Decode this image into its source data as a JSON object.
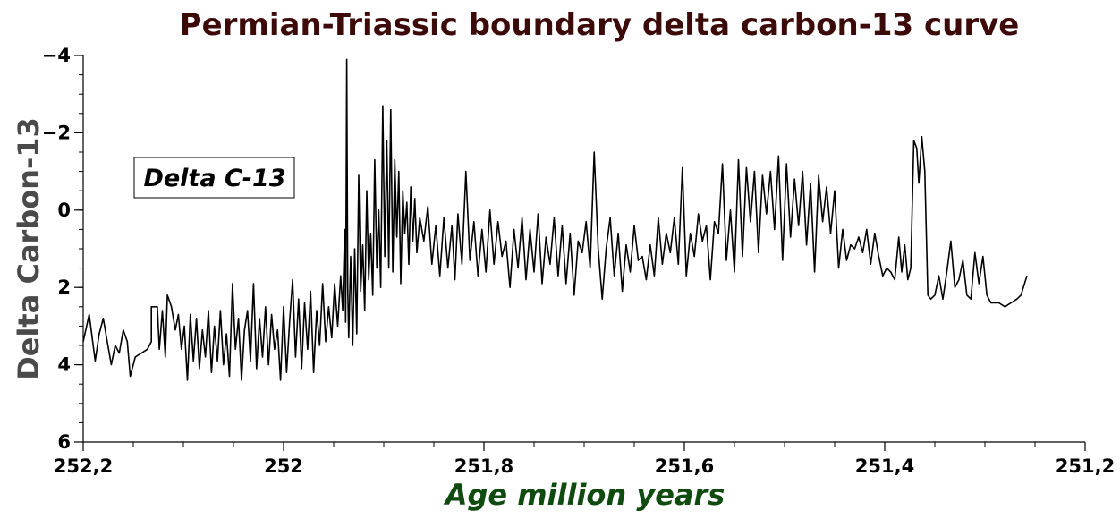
{
  "chart_data": {
    "type": "line",
    "title": "Permian-Triassic boundary delta carbon-13 curve",
    "xlabel": "Age million years",
    "ylabel": "Delta Carbon-13",
    "xlim": [
      252.2,
      251.2
    ],
    "ylim": [
      6,
      -4
    ],
    "y_inverted": true,
    "x_reversed": true,
    "grid": false,
    "legend_position": "upper-left",
    "x_ticks": [
      {
        "value": 252.2,
        "label": "252,2"
      },
      {
        "value": 252.0,
        "label": "252"
      },
      {
        "value": 251.8,
        "label": "251,8"
      },
      {
        "value": 251.6,
        "label": "251,6"
      },
      {
        "value": 251.4,
        "label": "251,4"
      },
      {
        "value": 251.2,
        "label": "251,2"
      }
    ],
    "y_ticks": [
      {
        "value": -4,
        "label": "−4"
      },
      {
        "value": -2,
        "label": "−2"
      },
      {
        "value": 0,
        "label": "0"
      },
      {
        "value": 2,
        "label": "2"
      },
      {
        "value": 4,
        "label": "4"
      },
      {
        "value": 6,
        "label": "6"
      }
    ],
    "series": [
      {
        "name": "Delta C-13",
        "color": "#000000",
        "points": [
          [
            252.2,
            3.4
          ],
          [
            252.194,
            2.7
          ],
          [
            252.188,
            3.9
          ],
          [
            252.184,
            3.2
          ],
          [
            252.18,
            2.8
          ],
          [
            252.176,
            3.4
          ],
          [
            252.172,
            4.0
          ],
          [
            252.168,
            3.5
          ],
          [
            252.164,
            3.7
          ],
          [
            252.16,
            3.1
          ],
          [
            252.156,
            3.4
          ],
          [
            252.153,
            4.3
          ],
          [
            252.148,
            3.8
          ],
          [
            252.136,
            3.6
          ],
          [
            252.132,
            3.4
          ],
          [
            252.132,
            2.5
          ],
          [
            252.126,
            2.5
          ],
          [
            252.124,
            3.6
          ],
          [
            252.121,
            2.6
          ],
          [
            252.118,
            3.8
          ],
          [
            252.116,
            2.2
          ],
          [
            252.112,
            2.5
          ],
          [
            252.108,
            3.1
          ],
          [
            252.105,
            2.7
          ],
          [
            252.102,
            3.6
          ],
          [
            252.099,
            3.0
          ],
          [
            252.096,
            4.4
          ],
          [
            252.093,
            2.7
          ],
          [
            252.09,
            3.9
          ],
          [
            252.087,
            2.8
          ],
          [
            252.084,
            4.1
          ],
          [
            252.081,
            3.1
          ],
          [
            252.078,
            3.8
          ],
          [
            252.075,
            2.6
          ],
          [
            252.072,
            4.2
          ],
          [
            252.069,
            3.0
          ],
          [
            252.066,
            3.9
          ],
          [
            252.063,
            2.6
          ],
          [
            252.06,
            4.0
          ],
          [
            252.057,
            3.2
          ],
          [
            252.054,
            4.3
          ],
          [
            252.051,
            1.9
          ],
          [
            252.048,
            3.6
          ],
          [
            252.045,
            2.8
          ],
          [
            252.042,
            4.4
          ],
          [
            252.039,
            3.1
          ],
          [
            252.036,
            2.6
          ],
          [
            252.033,
            3.9
          ],
          [
            252.03,
            1.9
          ],
          [
            252.027,
            4.1
          ],
          [
            252.024,
            2.8
          ],
          [
            252.021,
            3.8
          ],
          [
            252.018,
            2.5
          ],
          [
            252.015,
            4.0
          ],
          [
            252.012,
            2.7
          ],
          [
            252.009,
            3.6
          ],
          [
            252.006,
            3.1
          ],
          [
            252.003,
            4.4
          ],
          [
            252.0,
            2.5
          ],
          [
            251.997,
            4.2
          ],
          [
            251.994,
            2.9
          ],
          [
            251.991,
            1.8
          ],
          [
            251.988,
            3.8
          ],
          [
            251.985,
            2.3
          ],
          [
            251.982,
            4.1
          ],
          [
            251.979,
            2.4
          ],
          [
            251.976,
            3.6
          ],
          [
            251.973,
            2.1
          ],
          [
            251.97,
            4.2
          ],
          [
            251.967,
            2.6
          ],
          [
            251.964,
            3.5
          ],
          [
            251.961,
            1.9
          ],
          [
            251.958,
            3.4
          ],
          [
            251.955,
            2.5
          ],
          [
            251.952,
            3.3
          ],
          [
            251.949,
            1.9
          ],
          [
            251.946,
            3.0
          ],
          [
            251.943,
            1.7
          ],
          [
            251.941,
            2.6
          ],
          [
            251.939,
            0.5
          ],
          [
            251.938,
            2.9
          ],
          [
            251.937,
            -3.9
          ],
          [
            251.936,
            2.0
          ],
          [
            251.935,
            3.3
          ],
          [
            251.933,
            1.2
          ],
          [
            251.931,
            3.5
          ],
          [
            251.929,
            1.0
          ],
          [
            251.927,
            3.2
          ],
          [
            251.925,
            -0.9
          ],
          [
            251.923,
            2.1
          ],
          [
            251.921,
            0.9
          ],
          [
            251.919,
            2.6
          ],
          [
            251.917,
            -0.5
          ],
          [
            251.915,
            1.8
          ],
          [
            251.913,
            0.6
          ],
          [
            251.911,
            2.2
          ],
          [
            251.909,
            -1.3
          ],
          [
            251.907,
            1.5
          ],
          [
            251.905,
            0.0
          ],
          [
            251.903,
            2.0
          ],
          [
            251.901,
            -2.7
          ],
          [
            251.899,
            1.2
          ],
          [
            251.897,
            -1.8
          ],
          [
            251.895,
            1.5
          ],
          [
            251.893,
            -2.6
          ],
          [
            251.891,
            1.6
          ],
          [
            251.889,
            -1.3
          ],
          [
            251.887,
            0.7
          ],
          [
            251.885,
            -1.0
          ],
          [
            251.883,
            1.9
          ],
          [
            251.881,
            -0.5
          ],
          [
            251.879,
            0.6
          ],
          [
            251.877,
            -0.2
          ],
          [
            251.875,
            1.4
          ],
          [
            251.873,
            -0.6
          ],
          [
            251.871,
            0.8
          ],
          [
            251.869,
            -0.3
          ],
          [
            251.867,
            1.1
          ],
          [
            251.864,
            0.2
          ],
          [
            251.86,
            0.8
          ],
          [
            251.856,
            -0.1
          ],
          [
            251.852,
            1.4
          ],
          [
            251.848,
            0.4
          ],
          [
            251.844,
            1.7
          ],
          [
            251.84,
            0.2
          ],
          [
            251.836,
            1.5
          ],
          [
            251.832,
            0.4
          ],
          [
            251.829,
            1.8
          ],
          [
            251.826,
            0.1
          ],
          [
            251.822,
            1.4
          ],
          [
            251.818,
            -1.0
          ],
          [
            251.814,
            1.3
          ],
          [
            251.81,
            0.3
          ],
          [
            251.806,
            1.7
          ],
          [
            251.802,
            0.5
          ],
          [
            251.798,
            1.6
          ],
          [
            251.794,
            0.0
          ],
          [
            251.79,
            1.4
          ],
          [
            251.786,
            0.3
          ],
          [
            251.782,
            1.2
          ],
          [
            251.778,
            0.8
          ],
          [
            251.774,
            2.0
          ],
          [
            251.77,
            0.5
          ],
          [
            251.766,
            1.5
          ],
          [
            251.762,
            0.2
          ],
          [
            251.758,
            1.8
          ],
          [
            251.754,
            0.5
          ],
          [
            251.75,
            1.6
          ],
          [
            251.746,
            0.1
          ],
          [
            251.742,
            1.9
          ],
          [
            251.738,
            0.7
          ],
          [
            251.734,
            1.4
          ],
          [
            251.73,
            0.2
          ],
          [
            251.726,
            1.7
          ],
          [
            251.722,
            0.4
          ],
          [
            251.718,
            1.9
          ],
          [
            251.714,
            0.6
          ],
          [
            251.71,
            2.2
          ],
          [
            251.706,
            0.8
          ],
          [
            251.702,
            1.1
          ],
          [
            251.698,
            0.3
          ],
          [
            251.694,
            1.5
          ],
          [
            251.69,
            -1.5
          ],
          [
            251.686,
            1.0
          ],
          [
            251.682,
            2.3
          ],
          [
            251.678,
            1.0
          ],
          [
            251.674,
            0.2
          ],
          [
            251.67,
            1.7
          ],
          [
            251.666,
            0.6
          ],
          [
            251.662,
            2.1
          ],
          [
            251.658,
            0.9
          ],
          [
            251.654,
            1.6
          ],
          [
            251.65,
            0.4
          ],
          [
            251.646,
            1.3
          ],
          [
            251.642,
            1.2
          ],
          [
            251.638,
            1.8
          ],
          [
            251.634,
            0.9
          ],
          [
            251.63,
            1.7
          ],
          [
            251.626,
            0.2
          ],
          [
            251.622,
            1.4
          ],
          [
            251.618,
            0.6
          ],
          [
            251.614,
            1.1
          ],
          [
            251.61,
            0.2
          ],
          [
            251.606,
            1.4
          ],
          [
            251.602,
            -1.1
          ],
          [
            251.598,
            1.7
          ],
          [
            251.594,
            0.6
          ],
          [
            251.59,
            1.2
          ],
          [
            251.586,
            0.1
          ],
          [
            251.582,
            0.8
          ],
          [
            251.578,
            0.4
          ],
          [
            251.574,
            1.8
          ],
          [
            251.57,
            0.3
          ],
          [
            251.566,
            0.6
          ],
          [
            251.562,
            -1.2
          ],
          [
            251.558,
            1.3
          ],
          [
            251.554,
            0.0
          ],
          [
            251.55,
            1.6
          ],
          [
            251.546,
            -1.3
          ],
          [
            251.542,
            1.2
          ],
          [
            251.538,
            -1.1
          ],
          [
            251.534,
            0.3
          ],
          [
            251.53,
            -1.0
          ],
          [
            251.526,
            1.1
          ],
          [
            251.522,
            -0.9
          ],
          [
            251.518,
            0.1
          ],
          [
            251.514,
            -1.0
          ],
          [
            251.51,
            0.5
          ],
          [
            251.506,
            -1.4
          ],
          [
            251.502,
            1.3
          ],
          [
            251.498,
            -1.2
          ],
          [
            251.494,
            0.7
          ],
          [
            251.49,
            -0.8
          ],
          [
            251.486,
            0.4
          ],
          [
            251.482,
            -1.0
          ],
          [
            251.478,
            0.9
          ],
          [
            251.474,
            -0.7
          ],
          [
            251.47,
            1.6
          ],
          [
            251.466,
            -0.9
          ],
          [
            251.462,
            0.3
          ],
          [
            251.458,
            -0.6
          ],
          [
            251.454,
            0.6
          ],
          [
            251.45,
            -0.5
          ],
          [
            251.446,
            1.5
          ],
          [
            251.442,
            0.5
          ],
          [
            251.438,
            1.3
          ],
          [
            251.434,
            0.9
          ],
          [
            251.43,
            1.0
          ],
          [
            251.426,
            0.7
          ],
          [
            251.422,
            1.1
          ],
          [
            251.418,
            0.5
          ],
          [
            251.414,
            1.4
          ],
          [
            251.41,
            0.6
          ],
          [
            251.406,
            1.2
          ],
          [
            251.402,
            1.7
          ],
          [
            251.398,
            1.5
          ],
          [
            251.394,
            1.6
          ],
          [
            251.39,
            1.8
          ],
          [
            251.386,
            0.7
          ],
          [
            251.383,
            1.6
          ],
          [
            251.38,
            0.9
          ],
          [
            251.377,
            1.8
          ],
          [
            251.374,
            1.5
          ],
          [
            251.371,
            -1.8
          ],
          [
            251.368,
            -1.6
          ],
          [
            251.366,
            -0.7
          ],
          [
            251.363,
            -1.9
          ],
          [
            251.36,
            -1.0
          ],
          [
            251.357,
            2.2
          ],
          [
            251.354,
            2.3
          ],
          [
            251.35,
            2.2
          ],
          [
            251.346,
            1.7
          ],
          [
            251.342,
            2.3
          ],
          [
            251.338,
            1.6
          ],
          [
            251.334,
            0.8
          ],
          [
            251.33,
            2.0
          ],
          [
            251.326,
            1.8
          ],
          [
            251.322,
            1.3
          ],
          [
            251.318,
            2.2
          ],
          [
            251.314,
            2.3
          ],
          [
            251.31,
            1.1
          ],
          [
            251.306,
            1.9
          ],
          [
            251.302,
            1.2
          ],
          [
            251.298,
            2.2
          ],
          [
            251.294,
            2.4
          ],
          [
            251.286,
            2.4
          ],
          [
            251.28,
            2.5
          ],
          [
            251.274,
            2.4
          ],
          [
            251.268,
            2.3
          ],
          [
            251.264,
            2.2
          ],
          [
            251.258,
            1.7
          ]
        ]
      }
    ],
    "legend": {
      "entries": [
        "Delta C-13"
      ]
    }
  }
}
